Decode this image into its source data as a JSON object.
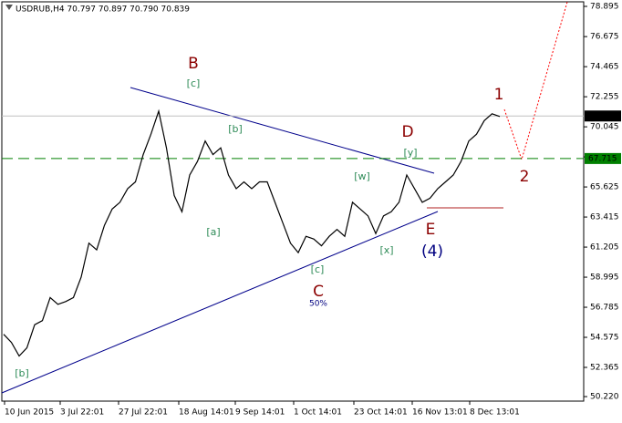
{
  "chart_data": {
    "type": "line",
    "title": "USDRUB,H4 70.797 70.897 70.790 70.839",
    "x_labels": [
      "10 Jun 2015",
      "3 Jul 22:01",
      "27 Jul 22:01",
      "18 Aug 14:01",
      "9 Sep 14:01",
      "1 Oct 14:01",
      "23 Oct 14:01",
      "16 Nov 13:01",
      "8 Dec 13:01"
    ],
    "color": "#000000",
    "values": [
      54.8,
      54.2,
      53.2,
      53.8,
      55.5,
      55.8,
      57.5,
      57.0,
      57.2,
      57.5,
      59.0,
      61.5,
      61.0,
      62.8,
      64.0,
      64.5,
      65.5,
      66.0,
      68.0,
      69.5,
      71.2,
      68.5,
      65.0,
      63.8,
      66.5,
      67.5,
      69.0,
      68.0,
      68.5,
      66.5,
      65.5,
      66.0,
      65.5,
      66.0,
      66.0,
      64.5,
      63.0,
      61.5,
      60.8,
      62.0,
      61.8,
      61.3,
      62.0,
      62.5,
      62.0,
      64.5,
      64.0,
      63.5,
      62.2,
      63.5,
      63.8,
      64.5,
      66.5,
      65.5,
      64.5,
      64.8,
      65.5,
      66.0,
      66.5,
      67.5,
      69.0,
      69.5,
      70.5,
      71.0,
      70.8
    ],
    "ylim": [
      49.887,
      79.364
    ],
    "yticks": [
      78.895,
      76.675,
      74.465,
      72.255,
      70.045,
      67.835,
      65.625,
      63.415,
      61.205,
      58.995,
      56.785,
      54.575,
      52.365,
      {
        "value": 50.22,
        "label": "50.220"
      }
    ],
    "price_line": {
      "value": 70.839,
      "color": "#c0c0c0"
    },
    "level_line": {
      "value": 67.715,
      "color": "#008000"
    },
    "annotations": [
      {
        "text": "B",
        "color": "#8b0000"
      },
      {
        "text": "[c]",
        "color": "#2e8b57"
      },
      {
        "text": "[b]",
        "color": "#2e8b57"
      },
      {
        "text": "D",
        "color": "#8b0000"
      },
      {
        "text": "[y]",
        "color": "#2e8b57"
      },
      {
        "text": "[w]",
        "color": "#2e8b57"
      },
      {
        "text": "1",
        "color": "#8b0000"
      },
      {
        "text": "2",
        "color": "#8b0000"
      },
      {
        "text": "[a]",
        "color": "#2e8b57"
      },
      {
        "text": "E",
        "color": "#8b0000"
      },
      {
        "text": "(4)",
        "color": "#000080"
      },
      {
        "text": "[x]",
        "color": "#2e8b57"
      },
      {
        "text": "[c]",
        "color": "#2e8b57"
      },
      {
        "text": "C",
        "color": "#8b0000"
      },
      {
        "text": "50%",
        "color": "#000080"
      },
      {
        "text": "[b]",
        "color": "#2e8b57"
      }
    ]
  }
}
